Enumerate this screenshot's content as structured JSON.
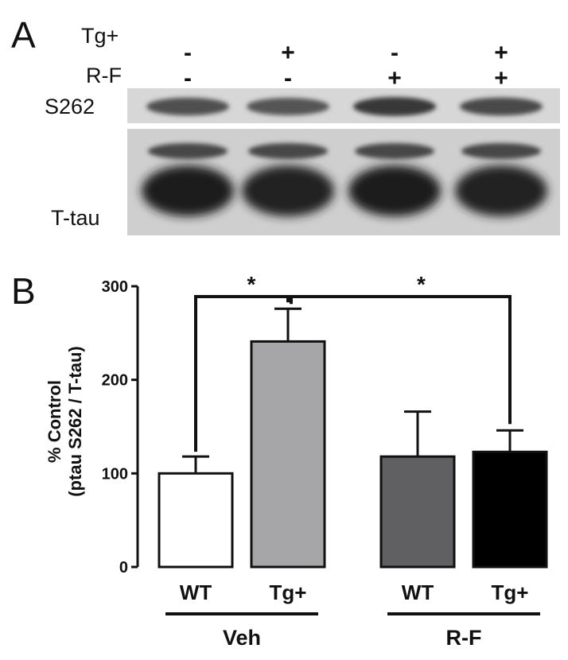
{
  "panel_a": {
    "letter": "A",
    "row_labels": [
      "Tg+",
      "R-F"
    ],
    "lanes": [
      {
        "tg": "-",
        "rf": "-"
      },
      {
        "tg": "+",
        "rf": "-"
      },
      {
        "tg": "-",
        "rf": "+"
      },
      {
        "tg": "+",
        "rf": "+"
      }
    ],
    "blots": [
      {
        "label": "S262",
        "band_intensity": [
          0.55,
          0.5,
          0.72,
          0.6
        ]
      },
      {
        "label": "T-tau",
        "band_intensity": [
          0.9,
          0.85,
          0.9,
          0.88
        ]
      }
    ]
  },
  "panel_b": {
    "letter": "B"
  },
  "chart_data": {
    "type": "bar",
    "ylabel_lines": [
      "% Control",
      "(ptau S262 / T-tau)"
    ],
    "ylim": [
      0,
      300
    ],
    "yticks": [
      0,
      100,
      200,
      300
    ],
    "grid": false,
    "categories": [
      "WT",
      "Tg+",
      "WT",
      "Tg+"
    ],
    "groups": [
      {
        "label": "Veh",
        "indices": [
          0,
          1
        ]
      },
      {
        "label": "R-F",
        "indices": [
          2,
          3
        ]
      }
    ],
    "values": [
      100,
      241,
      118,
      123
    ],
    "errors": [
      18,
      35,
      48,
      23
    ],
    "colors": [
      "#ffffff",
      "#a6a6a8",
      "#606062",
      "#000000"
    ],
    "significance": [
      {
        "from": 0,
        "to": 1,
        "label": "*"
      },
      {
        "from": 1,
        "to": 3,
        "label": "*"
      }
    ]
  }
}
